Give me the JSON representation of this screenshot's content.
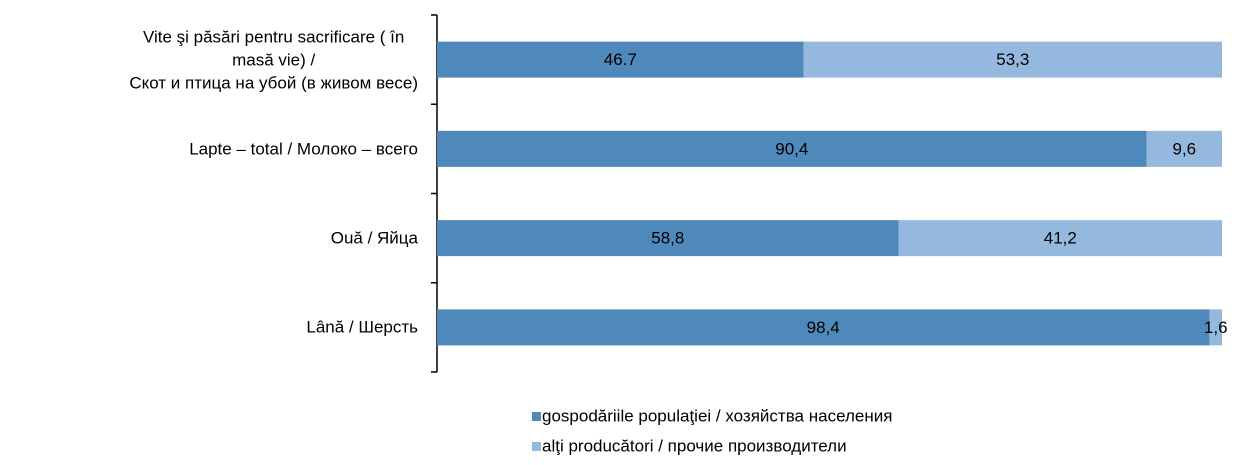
{
  "chart_data": {
    "type": "stacked_bar_horizontal",
    "categories": [
      "Vite şi păsări pentru sacrificare ( în\nmasă vie) /\nСкот и птица на убой (в живом весе)",
      "Lapte – total / Молоко – всего",
      "Ouă / Яйца",
      "Lână / Шерсть"
    ],
    "series": [
      {
        "name": "gospodăriile populaţiei / хозяйства населения",
        "color": "#4f88bb",
        "values": [
          46.7,
          90.4,
          58.8,
          98.4
        ],
        "value_labels": [
          "46.7",
          "90,4",
          "58,8",
          "98,4"
        ]
      },
      {
        "name": "alţi producători / прочие производители",
        "color": "#95b9de",
        "values": [
          53.3,
          9.6,
          41.2,
          1.6
        ],
        "value_labels": [
          "53,3",
          "9,6",
          "41,2",
          "1,6"
        ]
      }
    ],
    "legend": "bottom"
  }
}
